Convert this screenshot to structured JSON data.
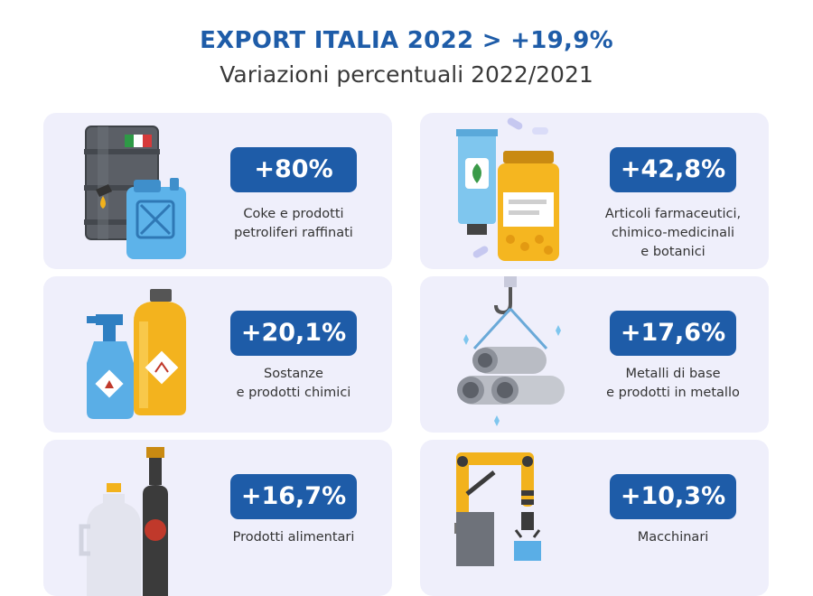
{
  "header": {
    "title": "EXPORT ITALIA 2022 > +19,9%",
    "subtitle": "Variazioni percentuali 2022/2021"
  },
  "cards": [
    {
      "value": "+80%",
      "label_lines": [
        "Coke e prodotti",
        "petroliferi raffinati"
      ],
      "icon": "oil-barrel-jerrycan-icon"
    },
    {
      "value": "+42,8%",
      "label_lines": [
        "Articoli farmaceutici,",
        "chimico-medicinali",
        "e botanici"
      ],
      "icon": "medicine-tube-jar-icon"
    },
    {
      "value": "+20,1%",
      "label_lines": [
        "Sostanze",
        "e prodotti chimici"
      ],
      "icon": "chemical-bottles-icon"
    },
    {
      "value": "+17,6%",
      "label_lines": [
        "Metalli di base",
        "e prodotti in metallo"
      ],
      "icon": "metal-pipes-hook-icon"
    },
    {
      "value": "+16,7%",
      "label_lines": [
        "Prodotti alimentari"
      ],
      "icon": "food-bottles-icon"
    },
    {
      "value": "+10,3%",
      "label_lines": [
        "Macchinari"
      ],
      "icon": "robot-arm-icon"
    }
  ],
  "colors": {
    "accent": "#1e5ca8",
    "card_bg": "#efeffb",
    "text": "#333333"
  }
}
